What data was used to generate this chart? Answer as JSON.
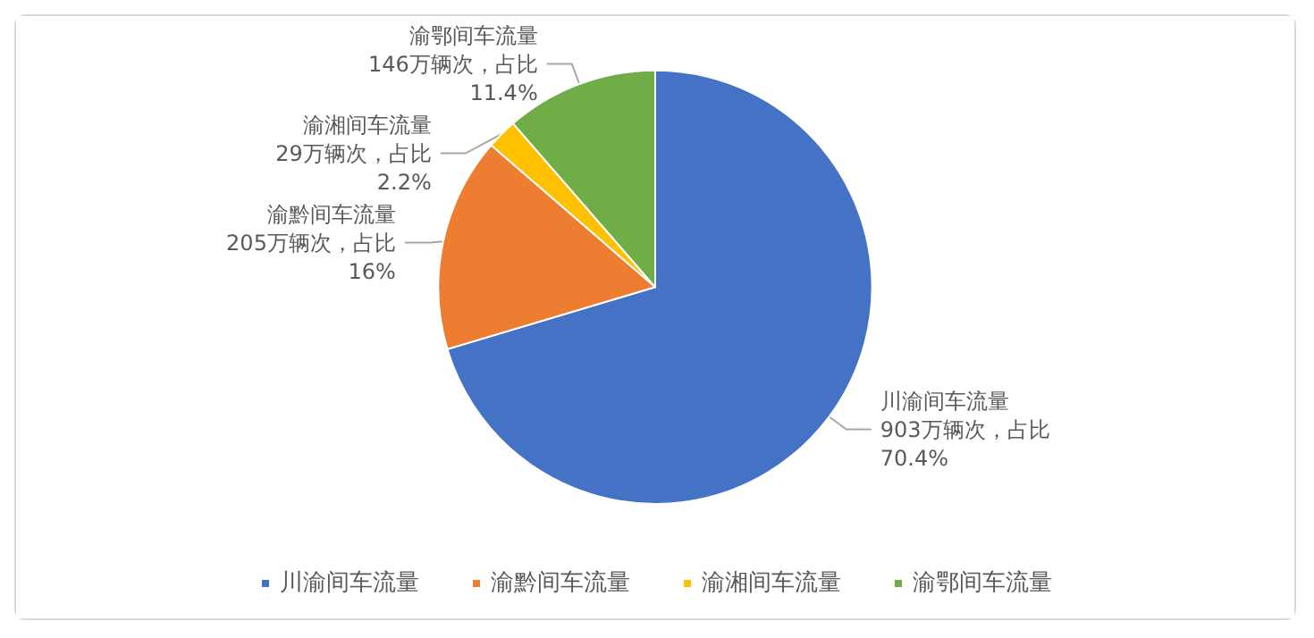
{
  "chart_data": {
    "type": "pie",
    "categories": [
      "川渝间车流量",
      "渝黔间车流量",
      "渝湘间车流量",
      "渝鄂间车流量"
    ],
    "values": [
      903,
      205,
      29,
      146
    ],
    "colors": [
      "#4472c4",
      "#ed7d31",
      "#ffc000",
      "#70ad47"
    ],
    "value_labels": [
      "903万辆次，占比70.4%",
      "205万辆次，占比16%",
      "29万辆次，占比2.2%",
      "146万辆次，占比11.4%"
    ],
    "legend": "bottom"
  }
}
